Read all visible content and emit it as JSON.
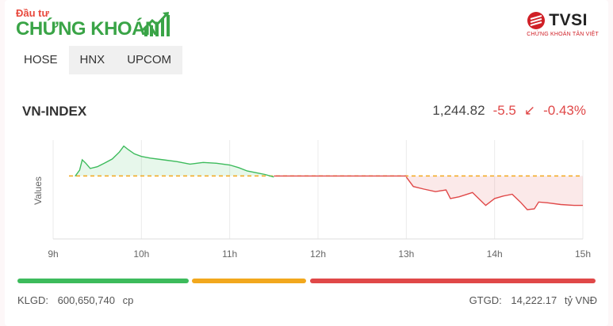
{
  "logo": {
    "small": "Đầu tư",
    "big": "CHỨNG KHOÁN"
  },
  "brand": {
    "name": "TVSI",
    "sub": "CHỨNG KHOÁN TÂN VIỆT"
  },
  "tabs": [
    {
      "label": "HOSE",
      "active": true
    },
    {
      "label": "HNX"
    },
    {
      "label": "UPCOM"
    }
  ],
  "index": {
    "name": "VN-INDEX",
    "price": "1,244.82",
    "change": "-5.5",
    "arrow": "↙",
    "percent": "-0.43%"
  },
  "colors": {
    "up": "#3dbb5c",
    "down": "#e04848",
    "ref": "#f2a81d"
  },
  "chart_data": {
    "type": "line",
    "ylabel": "Values",
    "x_ticks": [
      "9h",
      "10h",
      "11h",
      "12h",
      "13h",
      "14h",
      "15h"
    ],
    "reference": 1250.32,
    "ylim": [
      1243.0,
      1254.5
    ],
    "points": [
      [
        9.25,
        1250.3
      ],
      [
        9.3,
        1251.0
      ],
      [
        9.33,
        1252.2
      ],
      [
        9.37,
        1251.8
      ],
      [
        9.42,
        1251.2
      ],
      [
        9.5,
        1251.4
      ],
      [
        9.58,
        1251.8
      ],
      [
        9.67,
        1252.3
      ],
      [
        9.75,
        1253.1
      ],
      [
        9.8,
        1253.8
      ],
      [
        9.85,
        1253.4
      ],
      [
        9.92,
        1252.9
      ],
      [
        10.0,
        1252.6
      ],
      [
        10.1,
        1252.4
      ],
      [
        10.25,
        1252.2
      ],
      [
        10.4,
        1252.0
      ],
      [
        10.55,
        1251.7
      ],
      [
        10.7,
        1251.9
      ],
      [
        10.85,
        1251.8
      ],
      [
        11.0,
        1251.6
      ],
      [
        11.1,
        1251.3
      ],
      [
        11.2,
        1250.9
      ],
      [
        11.3,
        1250.7
      ],
      [
        11.4,
        1250.5
      ],
      [
        11.5,
        1250.2
      ],
      [
        13.0,
        1250.2
      ],
      [
        13.08,
        1249.1
      ],
      [
        13.2,
        1248.8
      ],
      [
        13.33,
        1248.5
      ],
      [
        13.45,
        1248.7
      ],
      [
        13.5,
        1247.7
      ],
      [
        13.6,
        1247.9
      ],
      [
        13.75,
        1248.4
      ],
      [
        13.83,
        1247.6
      ],
      [
        13.9,
        1246.9
      ],
      [
        14.0,
        1247.7
      ],
      [
        14.1,
        1248.0
      ],
      [
        14.2,
        1248.2
      ],
      [
        14.3,
        1247.2
      ],
      [
        14.37,
        1246.4
      ],
      [
        14.45,
        1246.5
      ],
      [
        14.5,
        1247.3
      ],
      [
        14.6,
        1247.2
      ],
      [
        14.75,
        1247.0
      ],
      [
        14.9,
        1246.9
      ],
      [
        15.0,
        1246.9
      ]
    ]
  },
  "breadth": {
    "up": 0.3,
    "ref": 0.2,
    "down": 0.5
  },
  "footer": {
    "klgd_label": "KLGD:",
    "klgd_value": "600,650,740",
    "klgd_unit": "cp",
    "gtgd_label": "GTGD:",
    "gtgd_value": "14,222.17",
    "gtgd_unit": "tỷ VNĐ"
  }
}
